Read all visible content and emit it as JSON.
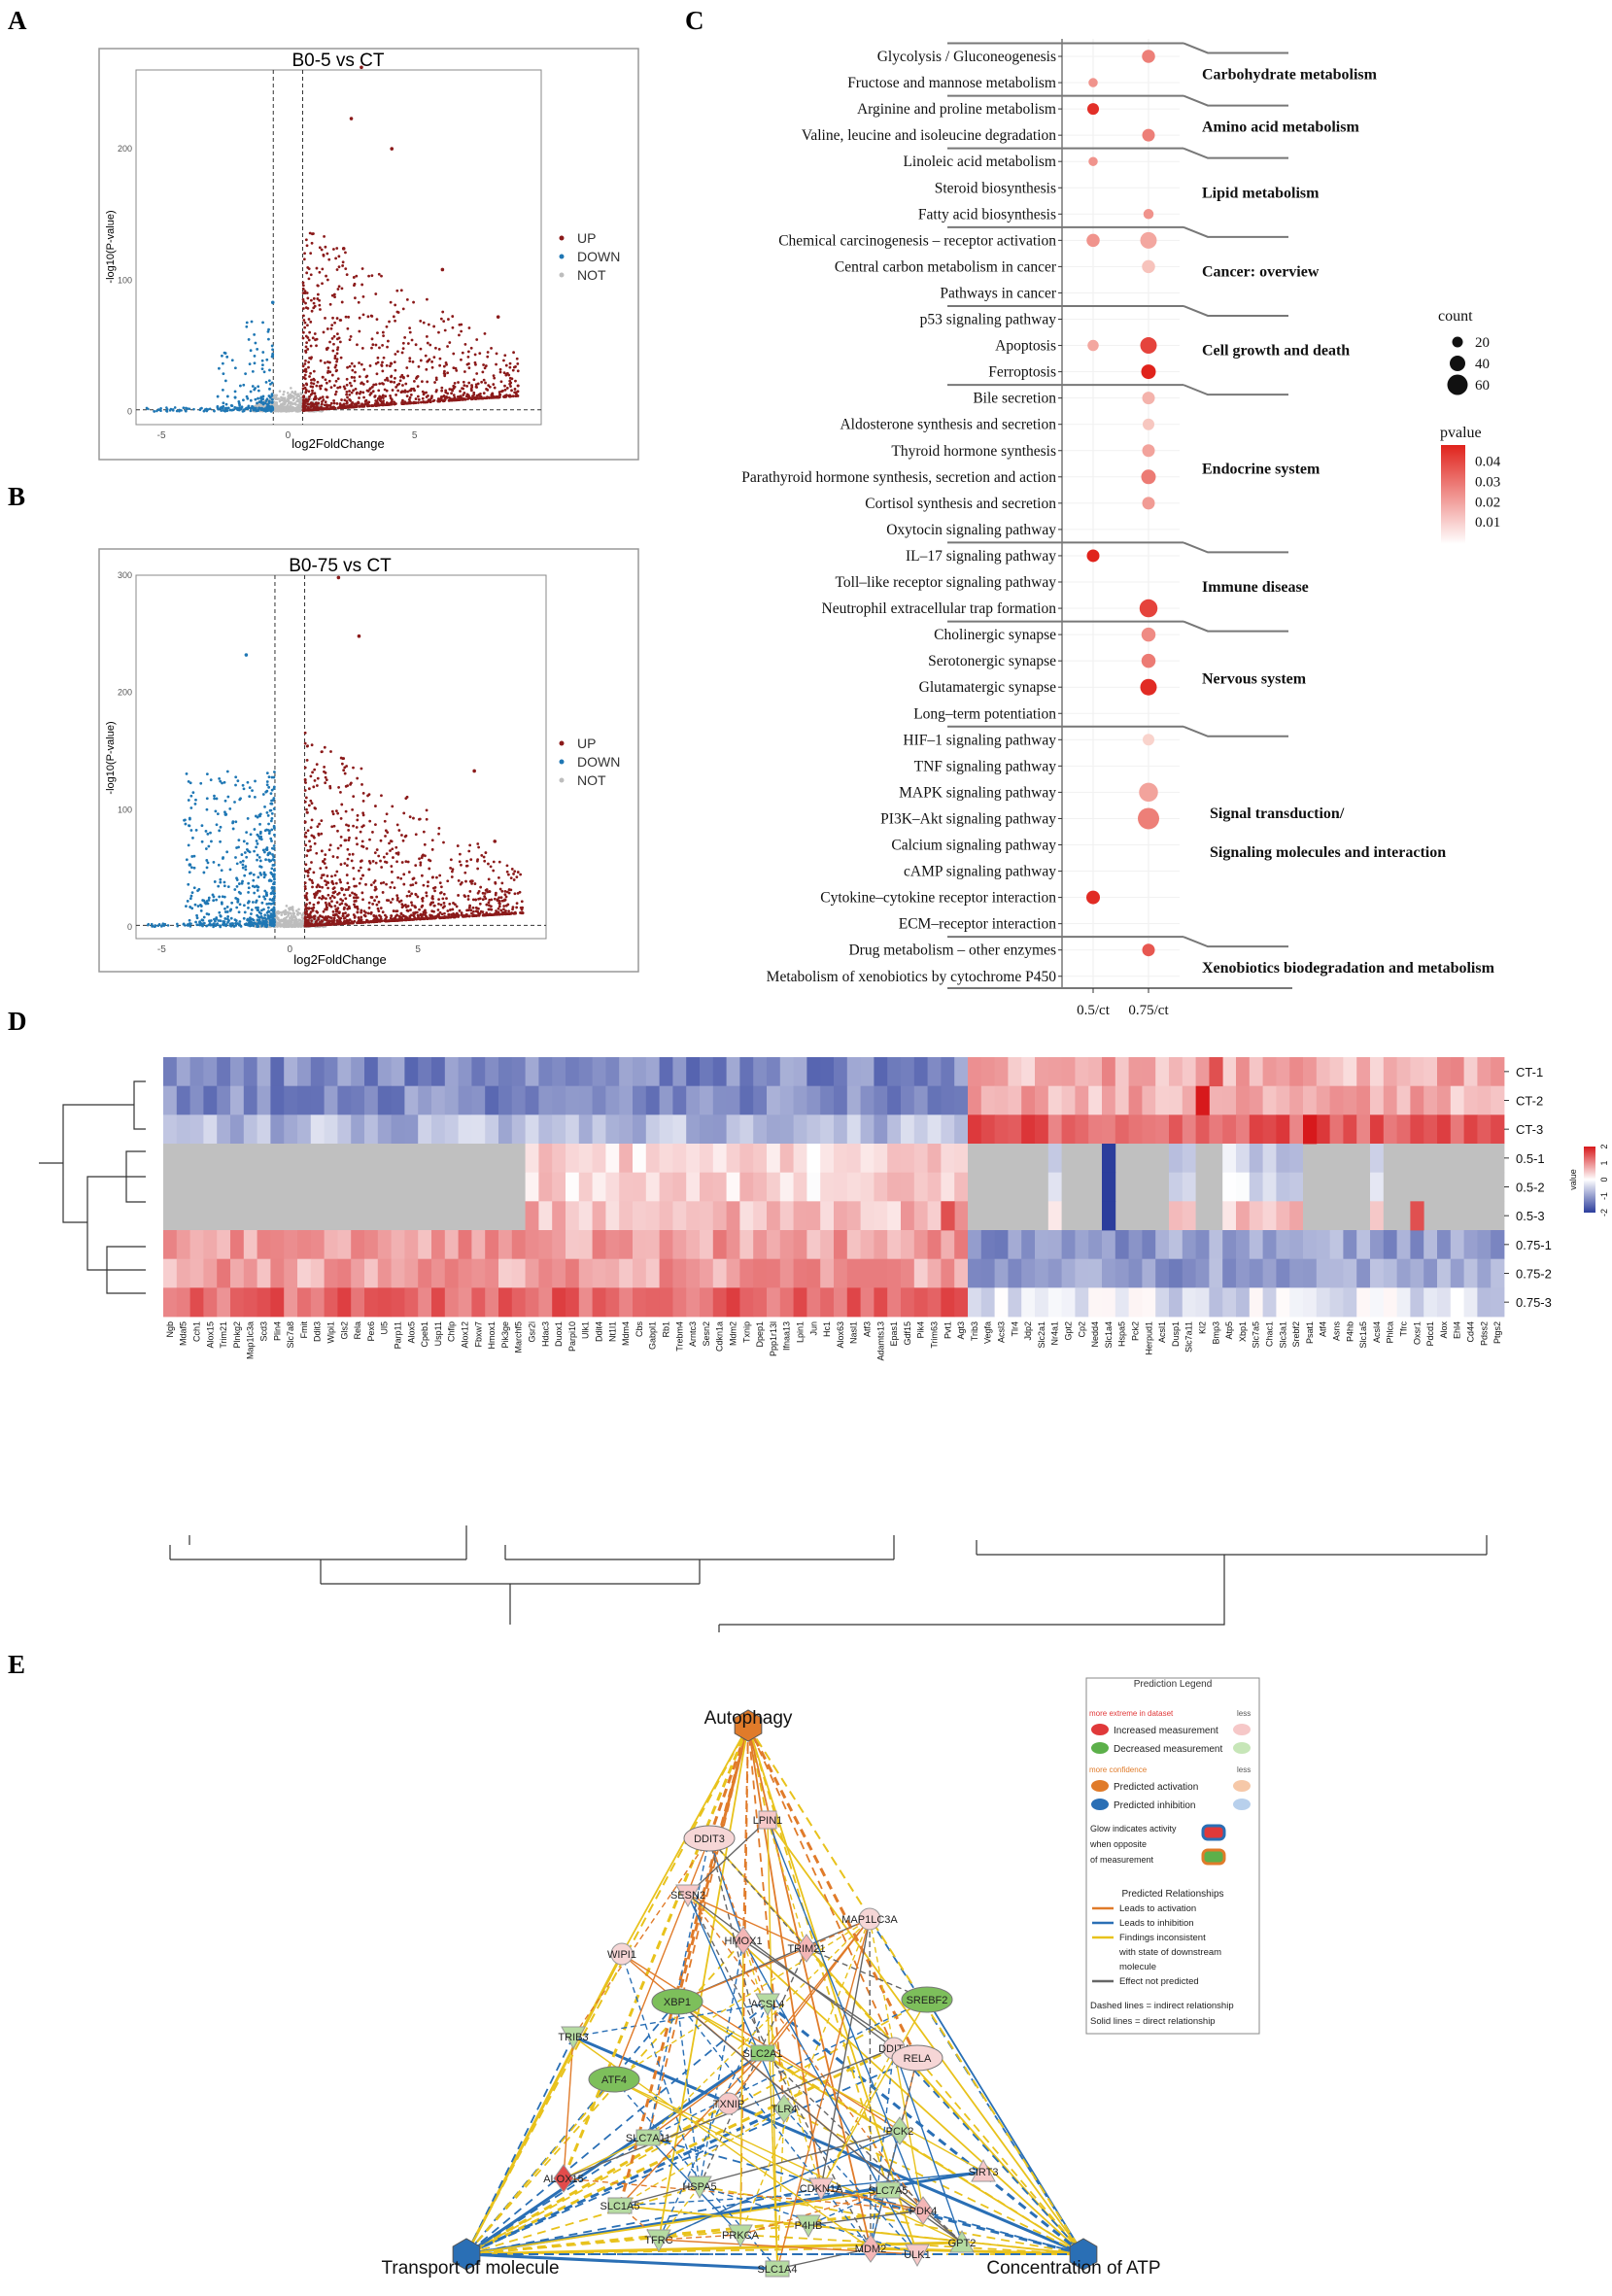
{
  "panels": {
    "A": {
      "label": "A"
    },
    "B": {
      "label": "B"
    },
    "C": {
      "label": "C"
    },
    "D": {
      "label": "D"
    },
    "E": {
      "label": "E"
    }
  },
  "chart_data": [
    {
      "id": "A",
      "type": "scatter",
      "title": "B0-5 vs CT",
      "xlabel": "log2FoldChange",
      "ylabel": "-log10(P-value)",
      "xlim": [
        -6,
        10
      ],
      "ylim": [
        -10,
        260
      ],
      "xticks": [
        "-5",
        "0",
        "5"
      ],
      "xtick_values": [
        -5,
        0,
        5
      ],
      "yticks": [
        "0",
        "100",
        "200"
      ],
      "ytick_values": [
        0,
        100,
        200
      ],
      "fc_thresholds": [
        -0.58,
        0.58
      ],
      "p_threshold_line": 1.3,
      "legend": [
        {
          "label": "UP",
          "color": "#8b1a1a"
        },
        {
          "label": "DOWN",
          "color": "#1f77b4"
        },
        {
          "label": "NOT",
          "color": "#bdbdbd"
        }
      ],
      "highlight_points": [
        [
          2.9,
          262
        ],
        [
          2.5,
          223
        ],
        [
          4.1,
          200
        ],
        [
          2.2,
          124
        ],
        [
          6.1,
          108
        ],
        [
          8.3,
          72
        ],
        [
          -0.6,
          83
        ]
      ]
    },
    {
      "id": "B",
      "type": "scatter",
      "title": "B0-75 vs CT",
      "xlabel": "log2FoldChange",
      "ylabel": "-log10(P-value)",
      "xlim": [
        -6,
        10
      ],
      "ylim": [
        -10,
        300
      ],
      "xticks": [
        "-5",
        "0",
        "5"
      ],
      "xtick_values": [
        -5,
        0,
        5
      ],
      "yticks": [
        "0",
        "100",
        "200",
        "300"
      ],
      "ytick_values": [
        0,
        100,
        200,
        300
      ],
      "fc_thresholds": [
        -0.58,
        0.58
      ],
      "p_threshold_line": 1.3,
      "legend": [
        {
          "label": "UP",
          "color": "#8b1a1a"
        },
        {
          "label": "DOWN",
          "color": "#1f77b4"
        },
        {
          "label": "NOT",
          "color": "#bdbdbd"
        }
      ],
      "highlight_points": [
        [
          1.9,
          298
        ],
        [
          2.7,
          248
        ],
        [
          7.2,
          133
        ],
        [
          8.0,
          73
        ],
        [
          -1.7,
          232
        ],
        [
          -2.5,
          96
        ],
        [
          -3.9,
          53
        ]
      ]
    },
    {
      "id": "C",
      "type": "scatter",
      "subtype": "dotplot",
      "x_categories": [
        "0.5/ct",
        "0.75/ct"
      ],
      "pathways": [
        "Glycolysis / Gluconeogenesis",
        "Fructose and mannose metabolism",
        "Arginine and proline metabolism",
        "Valine, leucine and isoleucine degradation",
        "Linoleic acid metabolism",
        "Steroid biosynthesis",
        "Fatty acid biosynthesis",
        "Chemical carcinogenesis – receptor activation",
        "Central carbon metabolism in cancer",
        "Pathways in cancer",
        "p53 signaling pathway",
        "Apoptosis",
        "Ferroptosis",
        "Bile secretion",
        "Aldosterone synthesis and secretion",
        "Thyroid hormone synthesis",
        "Parathyroid hormone synthesis, secretion and action",
        "Cortisol synthesis and secretion",
        "Oxytocin signaling pathway",
        "IL–17 signaling pathway",
        "Toll–like receptor signaling pathway",
        "Neutrophil extracellular trap formation",
        "Cholinergic synapse",
        "Serotonergic synapse",
        "Glutamatergic synapse",
        "Long–term potentiation",
        "HIF–1 signaling pathway",
        "TNF signaling pathway",
        "MAPK signaling pathway",
        "PI3K–Akt signaling pathway",
        "Calcium signaling pathway",
        "cAMP signaling pathway",
        "Cytokine–cytokine receptor interaction",
        "ECM–receptor interaction",
        "Drug metabolism – other enzymes",
        "Metabolism of xenobiotics by cytochrome P450"
      ],
      "points": [
        {
          "row": 0,
          "col": 1,
          "count": 30,
          "p": 0.025
        },
        {
          "row": 1,
          "col": 0,
          "count": 14,
          "p": 0.02
        },
        {
          "row": 2,
          "col": 0,
          "count": 24,
          "p": 0.045
        },
        {
          "row": 3,
          "col": 1,
          "count": 28,
          "p": 0.025
        },
        {
          "row": 4,
          "col": 0,
          "count": 14,
          "p": 0.02
        },
        {
          "row": 6,
          "col": 1,
          "count": 18,
          "p": 0.02
        },
        {
          "row": 7,
          "col": 0,
          "count": 30,
          "p": 0.02
        },
        {
          "row": 7,
          "col": 1,
          "count": 44,
          "p": 0.015
        },
        {
          "row": 8,
          "col": 1,
          "count": 30,
          "p": 0.008
        },
        {
          "row": 11,
          "col": 0,
          "count": 22,
          "p": 0.015
        },
        {
          "row": 11,
          "col": 1,
          "count": 44,
          "p": 0.04
        },
        {
          "row": 12,
          "col": 1,
          "count": 36,
          "p": 0.048
        },
        {
          "row": 13,
          "col": 1,
          "count": 28,
          "p": 0.012
        },
        {
          "row": 14,
          "col": 1,
          "count": 24,
          "p": 0.007
        },
        {
          "row": 15,
          "col": 1,
          "count": 28,
          "p": 0.016
        },
        {
          "row": 16,
          "col": 1,
          "count": 36,
          "p": 0.026
        },
        {
          "row": 17,
          "col": 1,
          "count": 28,
          "p": 0.018
        },
        {
          "row": 19,
          "col": 0,
          "count": 28,
          "p": 0.048
        },
        {
          "row": 21,
          "col": 1,
          "count": 50,
          "p": 0.04
        },
        {
          "row": 22,
          "col": 1,
          "count": 34,
          "p": 0.022
        },
        {
          "row": 23,
          "col": 1,
          "count": 34,
          "p": 0.026
        },
        {
          "row": 24,
          "col": 1,
          "count": 44,
          "p": 0.046
        },
        {
          "row": 26,
          "col": 1,
          "count": 24,
          "p": 0.004
        },
        {
          "row": 28,
          "col": 1,
          "count": 54,
          "p": 0.016
        },
        {
          "row": 29,
          "col": 1,
          "count": 64,
          "p": 0.025
        },
        {
          "row": 32,
          "col": 0,
          "count": 32,
          "p": 0.046
        },
        {
          "row": 34,
          "col": 1,
          "count": 28,
          "p": 0.035
        }
      ],
      "categories": [
        {
          "label": "Carbohydrate metabolism",
          "row_start": 0,
          "row_end": 1
        },
        {
          "label": "Amino acid metabolism",
          "row_start": 2,
          "row_end": 3
        },
        {
          "label": "Lipid metabolism",
          "row_start": 4,
          "row_end": 6
        },
        {
          "label": "Cancer: overview",
          "row_start": 7,
          "row_end": 9
        },
        {
          "label": "Cell growth and death",
          "row_start": 10,
          "row_end": 12
        },
        {
          "label": "Endocrine system",
          "row_start": 13,
          "row_end": 18
        },
        {
          "label": "Immune disease",
          "row_start": 19,
          "row_end": 21
        },
        {
          "label": "Nervous system",
          "row_start": 22,
          "row_end": 25
        },
        {
          "label": "Signal transduction/",
          "label2": "Signaling molecules and interaction",
          "row_start": 26,
          "row_end": 33
        },
        {
          "label": "Xenobiotics biodegradation and metabolism",
          "row_start": 34,
          "row_end": 35
        }
      ],
      "legend_count": {
        "title": "count",
        "values": [
          "20",
          "40",
          "60"
        ],
        "sizes": [
          20,
          40,
          60
        ]
      },
      "legend_p": {
        "title": "pvalue",
        "ticks": [
          "0.04",
          "0.03",
          "0.02",
          "0.01"
        ],
        "tick_values": [
          0.04,
          0.03,
          0.02,
          0.01
        ],
        "low_color": "#ffffff",
        "high_color": "#e0231c"
      }
    },
    {
      "id": "D",
      "type": "heatmap",
      "rows": [
        "CT-1",
        "CT-2",
        "CT-3",
        "0.5-1",
        "0.5-2",
        "0.5-3",
        "0.75-1",
        "0.75-2",
        "0.75-3"
      ],
      "columns": [
        "Ngb",
        "Mdaf5",
        "Cch1",
        "Alox15",
        "Trim21",
        "Plnkg2",
        "Map1lc3a",
        "Scd3",
        "Plin4",
        "Slc7a8",
        "Fmit",
        "Ddit3",
        "Wipi1",
        "Gls2",
        "Rela",
        "Pex6",
        "Ul5",
        "Parp11",
        "Alox5",
        "Cpeb1",
        "Usp11",
        "Chfip",
        "Alox12",
        "Fbxw7",
        "Hmox1",
        "Pik3ge",
        "Marchf5",
        "Gsr2i",
        "Hdac3",
        "Duox1",
        "Parpi10",
        "Ulk1",
        "Ddit4",
        "Nt1l1",
        "Mdm4",
        "Cbs",
        "Gabpl1",
        "Rb1",
        "Trebm4",
        "Arntc3",
        "Sesn2",
        "Cdkn1a",
        "Mdm2",
        "Txnip",
        "Dpep1",
        "Ppp1r13l",
        "Ifnaa13",
        "Lpin1",
        "Jun",
        "Hc1",
        "Alox63",
        "Nasl1",
        "Atf3",
        "Adamts13",
        "Epas1",
        "Gdf15",
        "Pik4",
        "Trim63",
        "Pvt1",
        "Agt3",
        "Trib3",
        "Vegfa",
        "Acsl3",
        "Tlr4",
        "Jdp2",
        "Slc2a1",
        "Nr4a1",
        "Gpt2",
        "Cp2",
        "Nedd4",
        "Slc1a4",
        "Hspa5",
        "Pck2",
        "Herpud1",
        "Acsl1",
        "Dusp1",
        "Slc7a11",
        "Kl2",
        "Bmp3",
        "Atp5",
        "Xbp1",
        "Slc7a5",
        "Chac1",
        "Slc3a1",
        "Srebf2",
        "Psat1",
        "Atf4",
        "Asns",
        "P4hb",
        "Slc1a5",
        "Acsl4",
        "Phlca",
        "Tfrc",
        "Oxsr1",
        "Pdcd1",
        "Alox",
        "Ehl4",
        "Cd44",
        "Pdss2",
        "Ptgs2"
      ],
      "split_col": 60,
      "blocks": [
        {
          "rows": [
            0,
            2
          ],
          "cols": [
            0,
            59
          ],
          "level": -1.2
        },
        {
          "rows": [
            2,
            2
          ],
          "cols": [
            0,
            59
          ],
          "level": -0.7
        },
        {
          "rows": [
            3,
            5
          ],
          "cols": [
            0,
            26
          ],
          "level": null
        },
        {
          "rows": [
            3,
            5
          ],
          "cols": [
            27,
            59
          ],
          "level": 0.3
        },
        {
          "rows": [
            5,
            5
          ],
          "cols": [
            27,
            59
          ],
          "level": 0.6
        },
        {
          "rows": [
            6,
            8
          ],
          "cols": [
            0,
            59
          ],
          "level": 0.8
        },
        {
          "rows": [
            8,
            8
          ],
          "cols": [
            0,
            59
          ],
          "level": 1.3
        },
        {
          "rows": [
            0,
            1
          ],
          "cols": [
            60,
            99
          ],
          "level": 0.7
        },
        {
          "rows": [
            2,
            2
          ],
          "cols": [
            60,
            99
          ],
          "level": 1.4
        },
        {
          "rows": [
            3,
            5
          ],
          "cols": [
            60,
            99
          ],
          "level": null
        },
        {
          "rows": [
            6,
            7
          ],
          "cols": [
            60,
            99
          ],
          "level": -1.0
        },
        {
          "rows": [
            8,
            8
          ],
          "cols": [
            60,
            99
          ],
          "level": -0.3
        }
      ],
      "legend": {
        "title": "value",
        "ticks": [
          "2",
          "1",
          "0",
          "-1",
          "-2"
        ],
        "tick_values": [
          2,
          1,
          0,
          -1,
          -2
        ],
        "low_color": "#2b3d9c",
        "mid_color": "#ffffff",
        "high_color": "#d7191c",
        "na_color": "#c0c0c0"
      }
    }
  ],
  "network": {
    "corner_nodes": [
      {
        "id": "autophagy",
        "label": "Autophagy",
        "color": "#e07b2a"
      },
      {
        "id": "transport",
        "label": "Transport of molecule",
        "color": "#2a6fb5"
      },
      {
        "id": "atp",
        "label": "Concentration of ATP",
        "color": "#2a6fb5"
      }
    ],
    "nodes": [
      {
        "label": "DDIT3",
        "shape": "ellipse",
        "color": "#f6d6d6"
      },
      {
        "label": "LPIN1",
        "shape": "square",
        "color": "#f6c8c8"
      },
      {
        "label": "SESN2",
        "shape": "triangle-down",
        "color": "#f6c8c8"
      },
      {
        "label": "HMOX1",
        "shape": "diamond",
        "color": "#f4b6b6"
      },
      {
        "label": "TRIM21",
        "shape": "diamond",
        "color": "#f4b6b6"
      },
      {
        "label": "MAP1LC3A",
        "shape": "circle",
        "color": "#f6d6d6"
      },
      {
        "label": "WIPI1",
        "shape": "circle",
        "color": "#f6d6d6"
      },
      {
        "label": "XBP1",
        "shape": "ellipse",
        "color": "#7dbf5b"
      },
      {
        "label": "ACSL4",
        "shape": "triangle-down",
        "color": "#b5dba1"
      },
      {
        "label": "SREBF2",
        "shape": "ellipse",
        "color": "#7dbf5b"
      },
      {
        "label": "TRIB3",
        "shape": "triangle-down",
        "color": "#b5dba1"
      },
      {
        "label": "SLC2A1",
        "shape": "rect",
        "color": "#8fcc76"
      },
      {
        "label": "DDIT4",
        "shape": "circle",
        "color": "#f6d6d6"
      },
      {
        "label": "RELA",
        "shape": "ellipse",
        "color": "#f6d6d6"
      },
      {
        "label": "ATF4",
        "shape": "ellipse",
        "color": "#7dbf5b"
      },
      {
        "label": "TXNIP",
        "shape": "circle",
        "color": "#f6c8c8"
      },
      {
        "label": "TLR4",
        "shape": "diamond",
        "color": "#b5dba1"
      },
      {
        "label": "PCK2",
        "shape": "diamond",
        "color": "#b5dba1"
      },
      {
        "label": "SLC7A11",
        "shape": "rect",
        "color": "#b5dba1"
      },
      {
        "label": "SIRT3",
        "shape": "triangle-up",
        "color": "#f6c8c8"
      },
      {
        "label": "ALOX15",
        "shape": "diamond",
        "color": "#e34b4b"
      },
      {
        "label": "HSPA5",
        "shape": "triangle-down",
        "color": "#b5dba1"
      },
      {
        "label": "CDKN1A",
        "shape": "triangle-down",
        "color": "#f6c8c8"
      },
      {
        "label": "SLC7A5",
        "shape": "rect",
        "color": "#b5dba1"
      },
      {
        "label": "PDK4",
        "shape": "diamond",
        "color": "#f4b6b6"
      },
      {
        "label": "SLC1A5",
        "shape": "rect",
        "color": "#b5dba1"
      },
      {
        "label": "TFRC",
        "shape": "triangle-down",
        "color": "#b5dba1"
      },
      {
        "label": "PRKCA",
        "shape": "triangle-down",
        "color": "#b5dba1"
      },
      {
        "label": "P4HB",
        "shape": "triangle-down",
        "color": "#b5dba1"
      },
      {
        "label": "MDM2",
        "shape": "diamond",
        "color": "#f4b6b6"
      },
      {
        "label": "ULK1",
        "shape": "triangle-down",
        "color": "#f6c8c8"
      },
      {
        "label": "GPT2",
        "shape": "triangle-up",
        "color": "#b5dba1"
      },
      {
        "label": "SLC1A4",
        "shape": "rect",
        "color": "#b5dba1"
      }
    ],
    "legend": {
      "title": "Prediction Legend",
      "more_extreme": "more extreme in dataset",
      "less": "less",
      "increased": "Increased measurement",
      "decreased": "Decreased measurement",
      "more_confidence": "more confidence",
      "less2": "less",
      "pred_activation": "Predicted activation",
      "pred_inhibition": "Predicted inhibition",
      "glow_1": "Glow indicates activity",
      "glow_2": "when opposite",
      "glow_3": "of measurement",
      "relationships_title": "Predicted Relationships",
      "rel_activation": "Leads to activation",
      "rel_inhibition": "Leads to inhibition",
      "rel_inconsistent_1": "Findings inconsistent",
      "rel_inconsistent_2": "with state of downstream",
      "rel_inconsistent_3": "molecule",
      "rel_not_predicted": "Effect not predicted",
      "dashed_note": "Dashed lines = indirect relationship",
      "solid_note": "Solid lines = direct relationship",
      "colors": {
        "activation": "#e07b2a",
        "inhibition": "#2a6fb5",
        "inconsistent": "#e8c21c",
        "not_predicted": "#666666",
        "increased": "#e0393a",
        "decreased": "#5cb04a"
      }
    }
  }
}
